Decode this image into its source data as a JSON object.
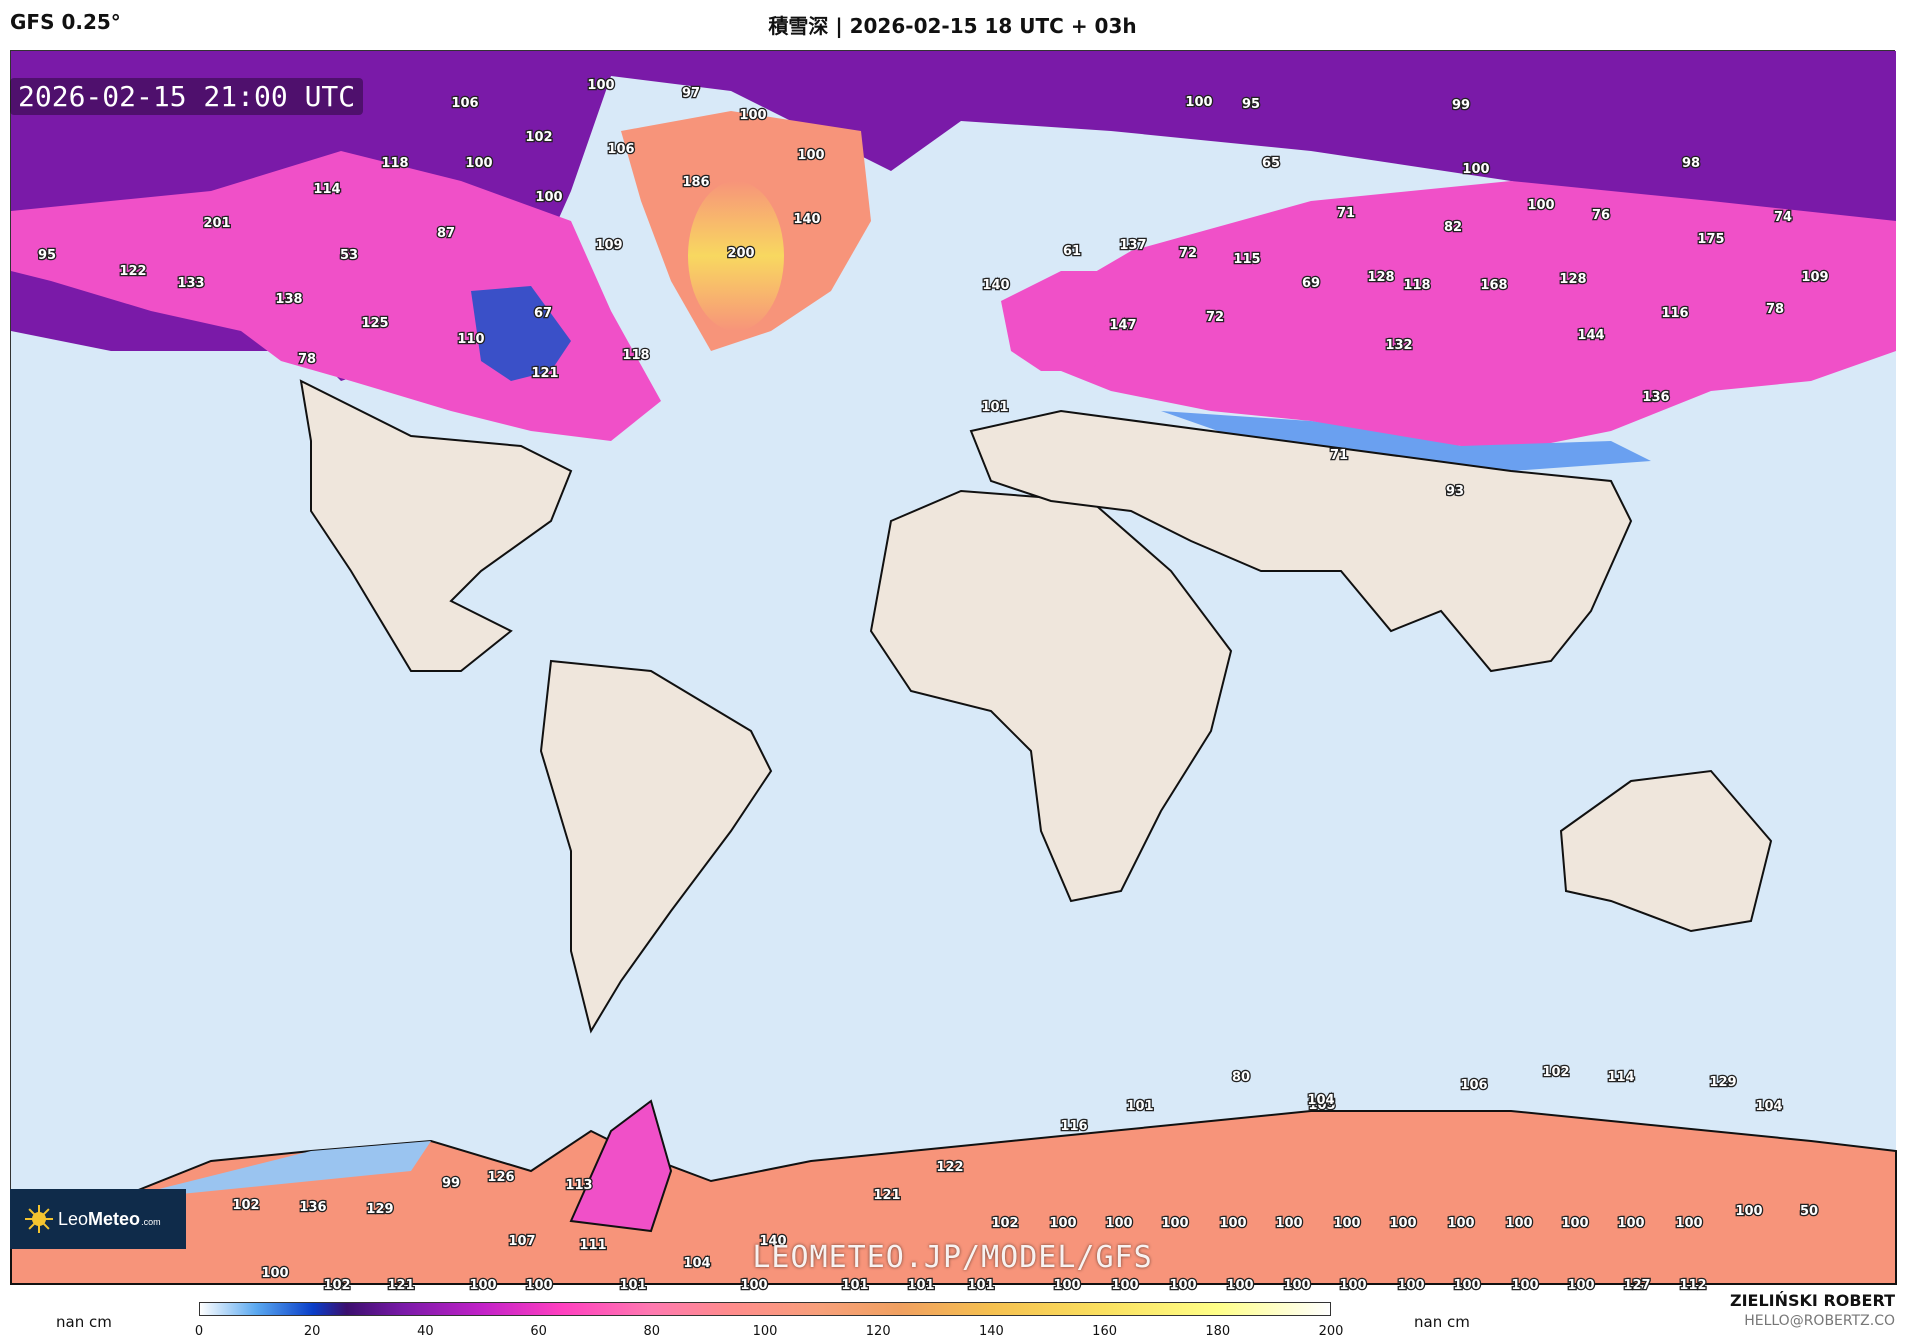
{
  "header": {
    "model": "GFS 0.25°",
    "title": "積雪深 | 2026-02-15 18 UTC + 03h"
  },
  "map": {
    "valid_time": "2026-02-15 21:00 UTC",
    "watermark": "LEOMETEO.JP/MODEL/GFS",
    "labels": [
      "100",
      "97",
      "100",
      "106",
      "102",
      "100",
      "106",
      "186",
      "100",
      "118",
      "114",
      "100",
      "140",
      "201",
      "53",
      "87",
      "109",
      "200",
      "95",
      "122",
      "133",
      "138",
      "125",
      "67",
      "110",
      "78",
      "121",
      "118",
      "100",
      "95",
      "99",
      "100",
      "65",
      "98",
      "100",
      "71",
      "76",
      "74",
      "82",
      "61",
      "137",
      "72",
      "115",
      "175",
      "69",
      "128",
      "118",
      "168",
      "128",
      "140",
      "72",
      "147",
      "109",
      "78",
      "116",
      "132",
      "144",
      "101",
      "136",
      "71",
      "93",
      "80",
      "102",
      "114",
      "129",
      "101",
      "105",
      "104",
      "106",
      "104",
      "116",
      "99",
      "126",
      "113",
      "122",
      "102",
      "136",
      "129",
      "121",
      "102",
      "100",
      "100",
      "100",
      "100",
      "100",
      "100",
      "100",
      "100",
      "100",
      "100",
      "100",
      "100",
      "100",
      "50",
      "107",
      "111",
      "140",
      "104",
      "100",
      "102",
      "121",
      "100",
      "100",
      "101",
      "100",
      "101",
      "101",
      "101",
      "100",
      "100",
      "100",
      "100",
      "100",
      "100",
      "100",
      "100",
      "100",
      "100",
      "127",
      "112"
    ]
  },
  "legend": {
    "unit_left": "nan cm",
    "unit_right": "nan cm",
    "ticks": [
      "0",
      "20",
      "40",
      "60",
      "80",
      "100",
      "120",
      "140",
      "160",
      "180",
      "200"
    ]
  },
  "logo": {
    "name_light": "Leo",
    "name_bold": "Meteo",
    "suffix": ".com"
  },
  "author": {
    "name": "ZIELIŃSKI ROBERT",
    "email": "HELLO@ROBERTZ.CO"
  },
  "colors": {
    "ocean": "#d8e9f8",
    "land": "#efe6dc",
    "snow_pink": "#f050c8",
    "snow_purple": "#7a1aa8",
    "snow_salmon": "#f7947a",
    "snow_blue": "#3a78e0",
    "logo_bg": "#0f2b4a"
  }
}
